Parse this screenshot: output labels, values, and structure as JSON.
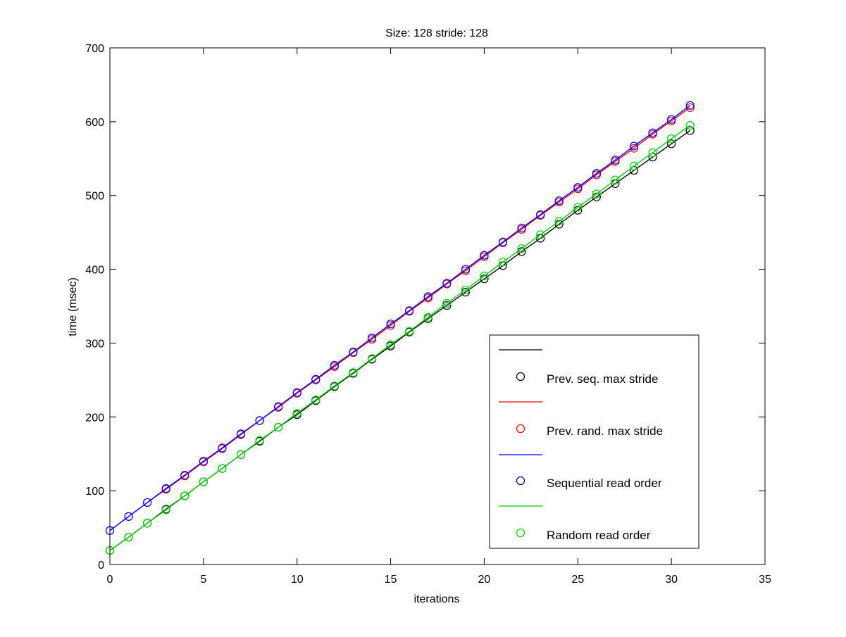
{
  "chart_data": {
    "type": "line",
    "title": "Size: 128 stride: 128",
    "xlabel": "iterations",
    "ylabel": "time (msec)",
    "xlim": [
      0,
      35
    ],
    "ylim": [
      0,
      700
    ],
    "xticks": [
      0,
      5,
      10,
      15,
      20,
      25,
      30,
      35
    ],
    "yticks": [
      0,
      100,
      200,
      300,
      400,
      500,
      600,
      700
    ],
    "grid": false,
    "legend_position": "bottom-right",
    "legend_entries": [
      {
        "label": "",
        "color": "#000000",
        "kind": "line"
      },
      {
        "label": "Prev. seq. max stride",
        "color": "#000000",
        "kind": "marker"
      },
      {
        "label": "",
        "color": "#ff0000",
        "kind": "line"
      },
      {
        "label": "Prev. rand. max stride",
        "color": "#ff0000",
        "kind": "marker"
      },
      {
        "label": "",
        "color": "#0000ff",
        "kind": "line"
      },
      {
        "label": "Sequential read order",
        "color": "#000080",
        "kind": "marker"
      },
      {
        "label": "",
        "color": "#00cc00",
        "kind": "line"
      },
      {
        "label": "Random read order",
        "color": "#00cc00",
        "kind": "marker"
      }
    ],
    "x": [
      0,
      1,
      2,
      3,
      4,
      5,
      6,
      7,
      8,
      9,
      10,
      11,
      12,
      13,
      14,
      15,
      16,
      17,
      18,
      19,
      20,
      21,
      22,
      23,
      24,
      25,
      26,
      27,
      28,
      29,
      30,
      31
    ],
    "series": [
      {
        "color": "#000000",
        "values": [
          19,
          37,
          56,
          75,
          93,
          112,
          130,
          149,
          167,
          186,
          203,
          222,
          241,
          259,
          278,
          296,
          315,
          333,
          351,
          369,
          387,
          405,
          424,
          442,
          461,
          480,
          498,
          516,
          534,
          552,
          570,
          588
        ]
      },
      {
        "color": "#ff0000",
        "values": [
          46,
          65,
          84,
          102,
          120,
          139,
          157,
          176,
          195,
          213,
          232,
          250,
          268,
          287,
          305,
          324,
          343,
          361,
          380,
          398,
          417,
          436,
          454,
          473,
          491,
          509,
          528,
          546,
          564,
          583,
          601,
          619
        ]
      },
      {
        "color": "#0000ff",
        "values": [
          46,
          65,
          84,
          103,
          121,
          140,
          158,
          177,
          195,
          214,
          233,
          251,
          270,
          288,
          307,
          326,
          344,
          363,
          381,
          400,
          419,
          437,
          456,
          474,
          493,
          511,
          530,
          548,
          567,
          585,
          603,
          622
        ]
      },
      {
        "color": "#00cc00",
        "values": [
          19,
          37,
          56,
          74,
          93,
          112,
          130,
          149,
          168,
          186,
          205,
          223,
          242,
          260,
          279,
          298,
          316,
          335,
          354,
          372,
          391,
          410,
          428,
          447,
          465,
          484,
          502,
          521,
          540,
          558,
          577,
          595
        ]
      }
    ]
  }
}
